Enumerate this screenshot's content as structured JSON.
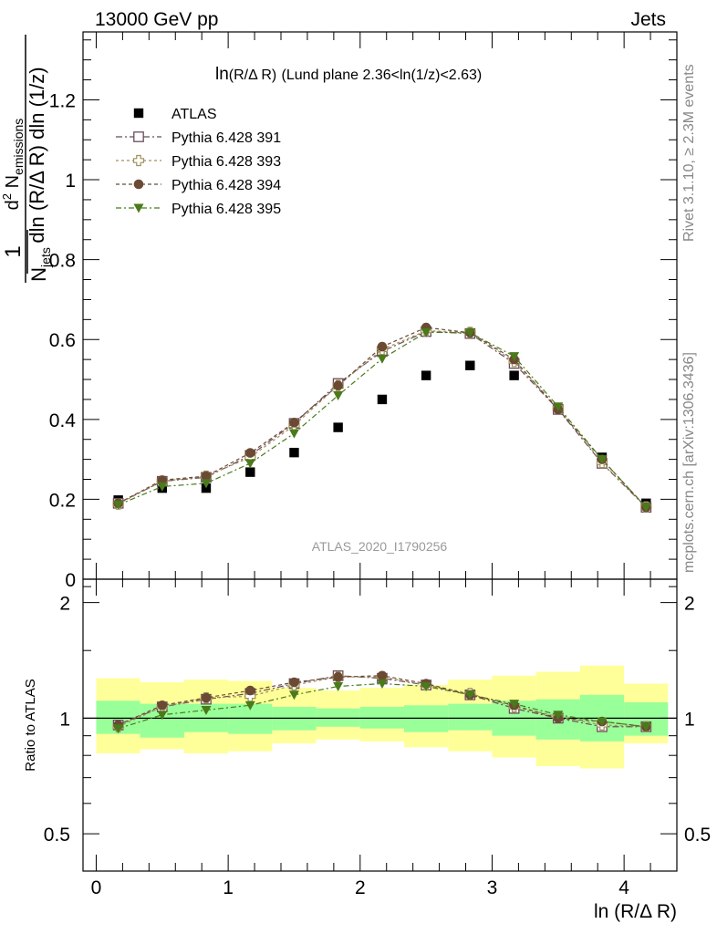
{
  "header": {
    "left": "13000 GeV pp",
    "right": "Jets"
  },
  "side_labels": {
    "rivet": "Rivet 3.1.10, ≥ 2.3M events",
    "mcplots": "mcplots.cern.ch [arXiv:1306.3436]"
  },
  "chart_data": [
    {
      "type": "scatter",
      "title_main": "ln",
      "title_sub": "(R/Δ R)",
      "title_rest": "(Lund plane 2.36<ln(1/z)<2.63)",
      "ylabel": "1 / N_jets · d² N_emissions / dln (R/Δ R) dln (1/z)",
      "ylabel_parts": {
        "one": "1",
        "n": "N",
        "n_sub": "jets",
        "den": "dln (R/Δ R) dln (1/z)",
        "d2": "d",
        "d2_sup": "2",
        "nem": "N",
        "nem_sub": "emissions"
      },
      "xlim": [
        -0.1,
        4.4
      ],
      "ylim": [
        0,
        1.37
      ],
      "yticks": [
        {
          "v": 0,
          "label": "0"
        },
        {
          "v": 0.2,
          "label": "0.2"
        },
        {
          "v": 0.4,
          "label": "0.4"
        },
        {
          "v": 0.6,
          "label": "0.6"
        },
        {
          "v": 0.8,
          "label": "0.8"
        },
        {
          "v": 1.0,
          "label": "1"
        },
        {
          "v": 1.2,
          "label": "1.2"
        }
      ],
      "x": [
        0.167,
        0.5,
        0.833,
        1.167,
        1.5,
        1.833,
        2.167,
        2.5,
        2.833,
        3.167,
        3.5,
        3.833,
        4.167
      ],
      "watermark": "ATLAS_2020_I1790256",
      "series": [
        {
          "name": "ATLAS",
          "color": "#000000",
          "marker": "filled-square",
          "values": [
            0.198,
            0.228,
            0.228,
            0.268,
            0.317,
            0.38,
            0.45,
            0.51,
            0.535,
            0.51,
            0.425,
            0.305,
            0.19
          ]
        },
        {
          "name": "Pythia 6.428 391",
          "color": "#6b4b5b",
          "marker": "open-square",
          "values": [
            0.19,
            0.245,
            0.255,
            0.31,
            0.39,
            0.49,
            0.57,
            0.62,
            0.615,
            0.54,
            0.425,
            0.29,
            0.18
          ]
        },
        {
          "name": "Pythia 6.428 393",
          "color": "#a0905a",
          "marker": "open-cross",
          "values": [
            0.188,
            0.245,
            0.258,
            0.305,
            0.385,
            0.485,
            0.575,
            0.622,
            0.618,
            0.545,
            0.428,
            0.292,
            0.181
          ]
        },
        {
          "name": "Pythia 6.428 394",
          "color": "#6b4a33",
          "marker": "filled-circle",
          "values": [
            0.19,
            0.248,
            0.258,
            0.316,
            0.392,
            0.485,
            0.582,
            0.63,
            0.617,
            0.55,
            0.425,
            0.3,
            0.18
          ]
        },
        {
          "name": "Pythia 6.428 395",
          "color": "#4a7a1a",
          "marker": "filled-triangle-down",
          "values": [
            0.186,
            0.232,
            0.24,
            0.29,
            0.365,
            0.46,
            0.552,
            0.618,
            0.617,
            0.558,
            0.432,
            0.3,
            0.18
          ]
        }
      ]
    },
    {
      "type": "scatter",
      "ylabel": "Ratio to ATLAS",
      "xlabel": "ln (R/Δ R)",
      "xlim": [
        -0.1,
        4.4
      ],
      "ylim": [
        0.4,
        2.3
      ],
      "yticks": [
        {
          "v": 0.5,
          "label": "0.5"
        },
        {
          "v": 1,
          "label": "1"
        },
        {
          "v": 2,
          "label": "2"
        }
      ],
      "xticks": [
        {
          "v": 0,
          "label": "0"
        },
        {
          "v": 1,
          "label": "1"
        },
        {
          "v": 2,
          "label": "2"
        },
        {
          "v": 3,
          "label": "3"
        },
        {
          "v": 4,
          "label": "4"
        }
      ],
      "band_edges": [
        0,
        0.333,
        0.667,
        1.0,
        1.333,
        1.667,
        2.0,
        2.333,
        2.667,
        3.0,
        3.333,
        3.667,
        4.0,
        4.333
      ],
      "band_inner": {
        "color": "#99ff99",
        "low": [
          0.91,
          0.89,
          0.92,
          0.91,
          0.93,
          0.95,
          0.94,
          0.92,
          0.93,
          0.9,
          0.88,
          0.87,
          0.9
        ],
        "high": [
          1.11,
          1.09,
          1.09,
          1.09,
          1.07,
          1.06,
          1.07,
          1.08,
          1.09,
          1.11,
          1.12,
          1.15,
          1.1
        ]
      },
      "band_outer": {
        "color": "#ffff99",
        "low": [
          0.81,
          0.83,
          0.81,
          0.82,
          0.86,
          0.88,
          0.87,
          0.84,
          0.82,
          0.79,
          0.75,
          0.74,
          0.86
        ],
        "high": [
          1.27,
          1.24,
          1.26,
          1.25,
          1.2,
          1.18,
          1.2,
          1.22,
          1.26,
          1.29,
          1.32,
          1.37,
          1.23
        ]
      },
      "x": [
        0.167,
        0.5,
        0.833,
        1.167,
        1.5,
        1.833,
        2.167,
        2.5,
        2.833,
        3.167,
        3.5,
        3.833,
        4.167
      ],
      "series": [
        {
          "name": "Pythia 6.428 391",
          "color": "#6b4b5b",
          "marker": "open-square",
          "values": [
            0.96,
            1.07,
            1.12,
            1.16,
            1.23,
            1.29,
            1.27,
            1.22,
            1.15,
            1.06,
            1.0,
            0.95,
            0.95
          ]
        },
        {
          "name": "Pythia 6.428 393",
          "color": "#a0905a",
          "marker": "open-cross",
          "values": [
            0.95,
            1.07,
            1.13,
            1.14,
            1.22,
            1.28,
            1.28,
            1.22,
            1.16,
            1.07,
            1.01,
            0.96,
            0.95
          ]
        },
        {
          "name": "Pythia 6.428 394",
          "color": "#6b4a33",
          "marker": "filled-circle",
          "values": [
            0.96,
            1.08,
            1.13,
            1.18,
            1.24,
            1.28,
            1.29,
            1.23,
            1.15,
            1.08,
            1.0,
            0.98,
            0.95
          ]
        },
        {
          "name": "Pythia 6.428 395",
          "color": "#4a7a1a",
          "marker": "filled-triangle-down",
          "values": [
            0.94,
            1.02,
            1.05,
            1.08,
            1.15,
            1.21,
            1.23,
            1.21,
            1.15,
            1.09,
            1.02,
            0.98,
            0.95
          ]
        }
      ]
    }
  ]
}
